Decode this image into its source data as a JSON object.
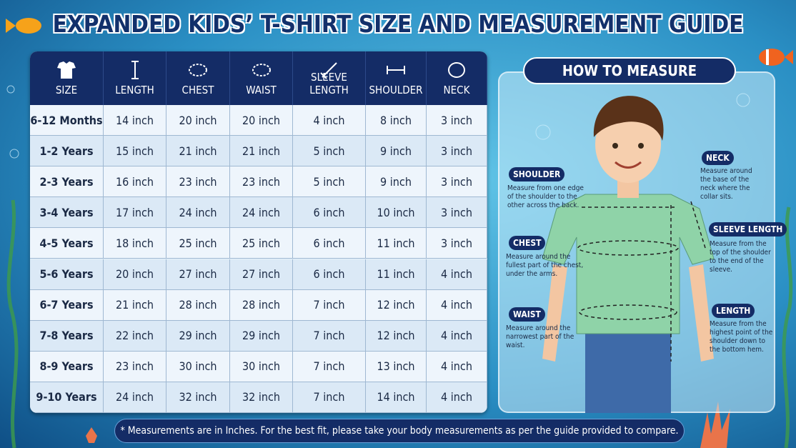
{
  "title": "EXPANDED KIDS’ T-SHIRT SIZE AND MEASUREMENT GUIDE",
  "table": {
    "headers": [
      "SIZE",
      "LENGTH",
      "CHEST",
      "WAIST",
      "SLEEVE LENGTH",
      "SHOULDER",
      "NECK"
    ],
    "rows": [
      [
        "6-12 Months",
        "14 inch",
        "20 inch",
        "20 inch",
        "4 inch",
        "8 inch",
        "3 inch"
      ],
      [
        "1-2 Years",
        "15 inch",
        "21 inch",
        "21 inch",
        "5 inch",
        "9 inch",
        "3 inch"
      ],
      [
        "2-3 Years",
        "16 inch",
        "23 inch",
        "23 inch",
        "5 inch",
        "9 inch",
        "3 inch"
      ],
      [
        "3-4 Years",
        "17 inch",
        "24 inch",
        "24 inch",
        "6 inch",
        "10 inch",
        "3 inch"
      ],
      [
        "4-5 Years",
        "18 inch",
        "25 inch",
        "25 inch",
        "6 inch",
        "11 inch",
        "3 inch"
      ],
      [
        "5-6 Years",
        "20 inch",
        "27 inch",
        "27 inch",
        "6 inch",
        "11 inch",
        "4 inch"
      ],
      [
        "6-7 Years",
        "21 inch",
        "28 inch",
        "28 inch",
        "7 inch",
        "12 inch",
        "4 inch"
      ],
      [
        "7-8 Years",
        "22 inch",
        "29 inch",
        "29 inch",
        "7 inch",
        "12 inch",
        "4 inch"
      ],
      [
        "8-9 Years",
        "23 inch",
        "30 inch",
        "30 inch",
        "7 inch",
        "13 inch",
        "4 inch"
      ],
      [
        "9-10 Years",
        "24 inch",
        "32 inch",
        "32 inch",
        "7 inch",
        "14 inch",
        "4 inch"
      ]
    ]
  },
  "how_to_measure": {
    "title": "HOW TO MEASURE",
    "items": [
      {
        "label": "SHOULDER",
        "text": "Measure from one edge of the shoulder to the other across the back."
      },
      {
        "label": "NECK",
        "text": "Measure around the base of the neck where the collar sits."
      },
      {
        "label": "SLEEVE LENGTH",
        "text": "Measure from the top of the shoulder to the end of the sleeve."
      },
      {
        "label": "CHEST",
        "text": "Measure around the fullest part of the chest, under the arms."
      },
      {
        "label": "WAIST",
        "text": "Measure around the narrowest part of the waist."
      },
      {
        "label": "LENGTH",
        "text": "Measure from the highest point of the shoulder down to the bottom hem."
      }
    ]
  },
  "footnote": "* Measurements are in Inches. For the best fit, please take your body measurements as per the guide provided to compare."
}
